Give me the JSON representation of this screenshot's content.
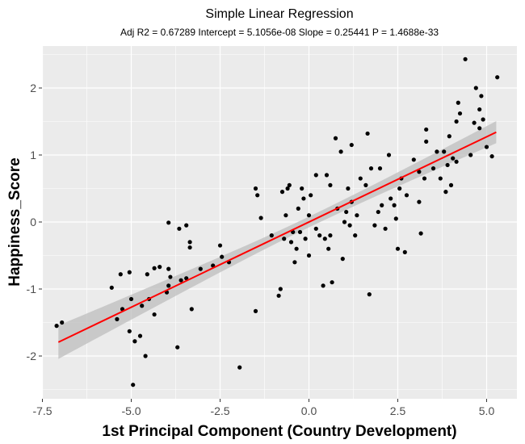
{
  "chart_data": {
    "type": "scatter",
    "title": "Simple Linear Regression",
    "subtitle": "Adj R2 = 0.67289  Intercept = 5.1056e-08  Slope = 0.25441  P = 1.4688e-33",
    "xlabel": "1st Principal Component (Country Development)",
    "ylabel": "Happiness_Score",
    "xlim": [
      -7.25,
      5.5
    ],
    "ylim": [
      -2.6,
      2.6
    ],
    "x_ticks": [
      -7.5,
      -5.0,
      -2.5,
      0.0,
      2.5,
      5.0
    ],
    "x_tick_labels": [
      "-7.5",
      "-5.0",
      "-2.5",
      "0.0",
      "2.5",
      "5.0"
    ],
    "y_ticks": [
      -2,
      -1,
      0,
      1,
      2
    ],
    "y_tick_labels": [
      "-2",
      "-1",
      "0",
      "1",
      "2"
    ],
    "grid": true,
    "regression": {
      "intercept": 5.1056e-08,
      "slope": 0.25441,
      "x_range": [
        -7.05,
        5.27
      ],
      "line_color": "#ff0000",
      "ci_band": {
        "lower_at_start": -2.03,
        "upper_at_start": -1.53,
        "lower_at_end": 1.18,
        "upper_at_end": 1.51,
        "lower_at_mean": -0.08,
        "upper_at_mean": 0.08
      }
    },
    "colors": {
      "panel": "#ebebeb",
      "grid": "#ffffff",
      "points": "#000000",
      "band": "#bebebe"
    },
    "points": [
      [
        -7.1,
        -1.55
      ],
      [
        -6.95,
        -1.5
      ],
      [
        -5.55,
        -0.98
      ],
      [
        -5.4,
        -1.45
      ],
      [
        -5.3,
        -0.78
      ],
      [
        -5.25,
        -1.3
      ],
      [
        -5.05,
        -0.75
      ],
      [
        -5.0,
        -1.15
      ],
      [
        -5.05,
        -1.63
      ],
      [
        -4.9,
        -1.78
      ],
      [
        -4.75,
        -1.7
      ],
      [
        -4.95,
        -2.43
      ],
      [
        -4.6,
        -2.0
      ],
      [
        -4.7,
        -1.25
      ],
      [
        -4.5,
        -1.15
      ],
      [
        -4.55,
        -0.78
      ],
      [
        -4.35,
        -0.69
      ],
      [
        -4.2,
        -0.67
      ],
      [
        -4.35,
        -1.38
      ],
      [
        -4.0,
        -1.05
      ],
      [
        -3.95,
        -0.95
      ],
      [
        -3.95,
        -0.7
      ],
      [
        -3.9,
        -0.82
      ],
      [
        -3.95,
        -0.01
      ],
      [
        -3.65,
        -0.1
      ],
      [
        -3.6,
        -0.87
      ],
      [
        -3.45,
        -0.84
      ],
      [
        -3.45,
        -0.05
      ],
      [
        -3.35,
        -0.3
      ],
      [
        -3.35,
        -0.38
      ],
      [
        -3.3,
        -1.3
      ],
      [
        -3.7,
        -1.87
      ],
      [
        -3.05,
        -0.7
      ],
      [
        -2.7,
        -0.65
      ],
      [
        -2.5,
        -0.35
      ],
      [
        -2.45,
        -0.52
      ],
      [
        -2.25,
        -0.6
      ],
      [
        -1.95,
        -2.17
      ],
      [
        -1.5,
        -1.33
      ],
      [
        -1.5,
        0.5
      ],
      [
        -1.45,
        0.4
      ],
      [
        -1.35,
        0.06
      ],
      [
        -1.05,
        -0.2
      ],
      [
        -0.85,
        -1.1
      ],
      [
        -0.8,
        -1.0
      ],
      [
        -0.75,
        0.45
      ],
      [
        -0.7,
        -0.25
      ],
      [
        -0.65,
        0.1
      ],
      [
        -0.6,
        0.5
      ],
      [
        -0.55,
        0.55
      ],
      [
        -0.5,
        -0.3
      ],
      [
        -0.45,
        -0.15
      ],
      [
        -0.4,
        -0.6
      ],
      [
        -0.35,
        -0.4
      ],
      [
        -0.25,
        -0.15
      ],
      [
        -0.2,
        0.5
      ],
      [
        -0.15,
        0.35
      ],
      [
        -0.1,
        -0.25
      ],
      [
        0.0,
        -0.5
      ],
      [
        0.0,
        0.1
      ],
      [
        0.05,
        0.4
      ],
      [
        0.2,
        0.7
      ],
      [
        0.2,
        -0.1
      ],
      [
        0.3,
        -0.2
      ],
      [
        0.4,
        -0.95
      ],
      [
        0.45,
        -0.25
      ],
      [
        0.5,
        0.7
      ],
      [
        0.55,
        -0.4
      ],
      [
        0.6,
        -0.2
      ],
      [
        0.6,
        0.55
      ],
      [
        0.65,
        -0.9
      ],
      [
        0.75,
        1.25
      ],
      [
        0.8,
        0.2
      ],
      [
        0.9,
        1.05
      ],
      [
        0.95,
        -0.55
      ],
      [
        1.0,
        0.0
      ],
      [
        1.05,
        0.15
      ],
      [
        1.1,
        0.5
      ],
      [
        1.15,
        -0.05
      ],
      [
        1.2,
        1.15
      ],
      [
        1.2,
        0.3
      ],
      [
        1.3,
        -0.2
      ],
      [
        1.35,
        0.1
      ],
      [
        1.45,
        0.65
      ],
      [
        1.6,
        0.55
      ],
      [
        1.65,
        1.32
      ],
      [
        1.7,
        -1.08
      ],
      [
        1.75,
        0.8
      ],
      [
        1.85,
        -0.05
      ],
      [
        1.95,
        0.15
      ],
      [
        2.0,
        0.8
      ],
      [
        2.05,
        0.25
      ],
      [
        2.15,
        -0.1
      ],
      [
        2.25,
        1.0
      ],
      [
        2.3,
        0.35
      ],
      [
        2.4,
        0.25
      ],
      [
        2.45,
        0.05
      ],
      [
        2.5,
        -0.4
      ],
      [
        2.55,
        0.5
      ],
      [
        2.6,
        0.65
      ],
      [
        2.7,
        -0.45
      ],
      [
        2.75,
        0.4
      ],
      [
        3.1,
        0.3
      ],
      [
        3.1,
        0.75
      ],
      [
        3.15,
        -0.17
      ],
      [
        3.25,
        0.65
      ],
      [
        3.3,
        1.38
      ],
      [
        3.3,
        1.2
      ],
      [
        3.5,
        0.8
      ],
      [
        3.6,
        1.05
      ],
      [
        3.7,
        0.65
      ],
      [
        3.8,
        1.05
      ],
      [
        3.9,
        0.85
      ],
      [
        3.85,
        0.45
      ],
      [
        3.95,
        1.28
      ],
      [
        4.0,
        0.55
      ],
      [
        4.05,
        0.95
      ],
      [
        4.15,
        0.9
      ],
      [
        4.15,
        1.5
      ],
      [
        4.2,
        1.78
      ],
      [
        4.25,
        1.62
      ],
      [
        4.4,
        2.43
      ],
      [
        4.55,
        1.0
      ],
      [
        4.65,
        1.48
      ],
      [
        4.7,
        2.0
      ],
      [
        4.8,
        1.68
      ],
      [
        4.85,
        1.88
      ],
      [
        4.9,
        1.53
      ],
      [
        5.0,
        1.12
      ],
      [
        5.15,
        0.98
      ],
      [
        5.3,
        2.16
      ],
      [
        4.8,
        1.4
      ],
      [
        2.95,
        0.93
      ],
      [
        -0.3,
        0.2
      ]
    ]
  }
}
